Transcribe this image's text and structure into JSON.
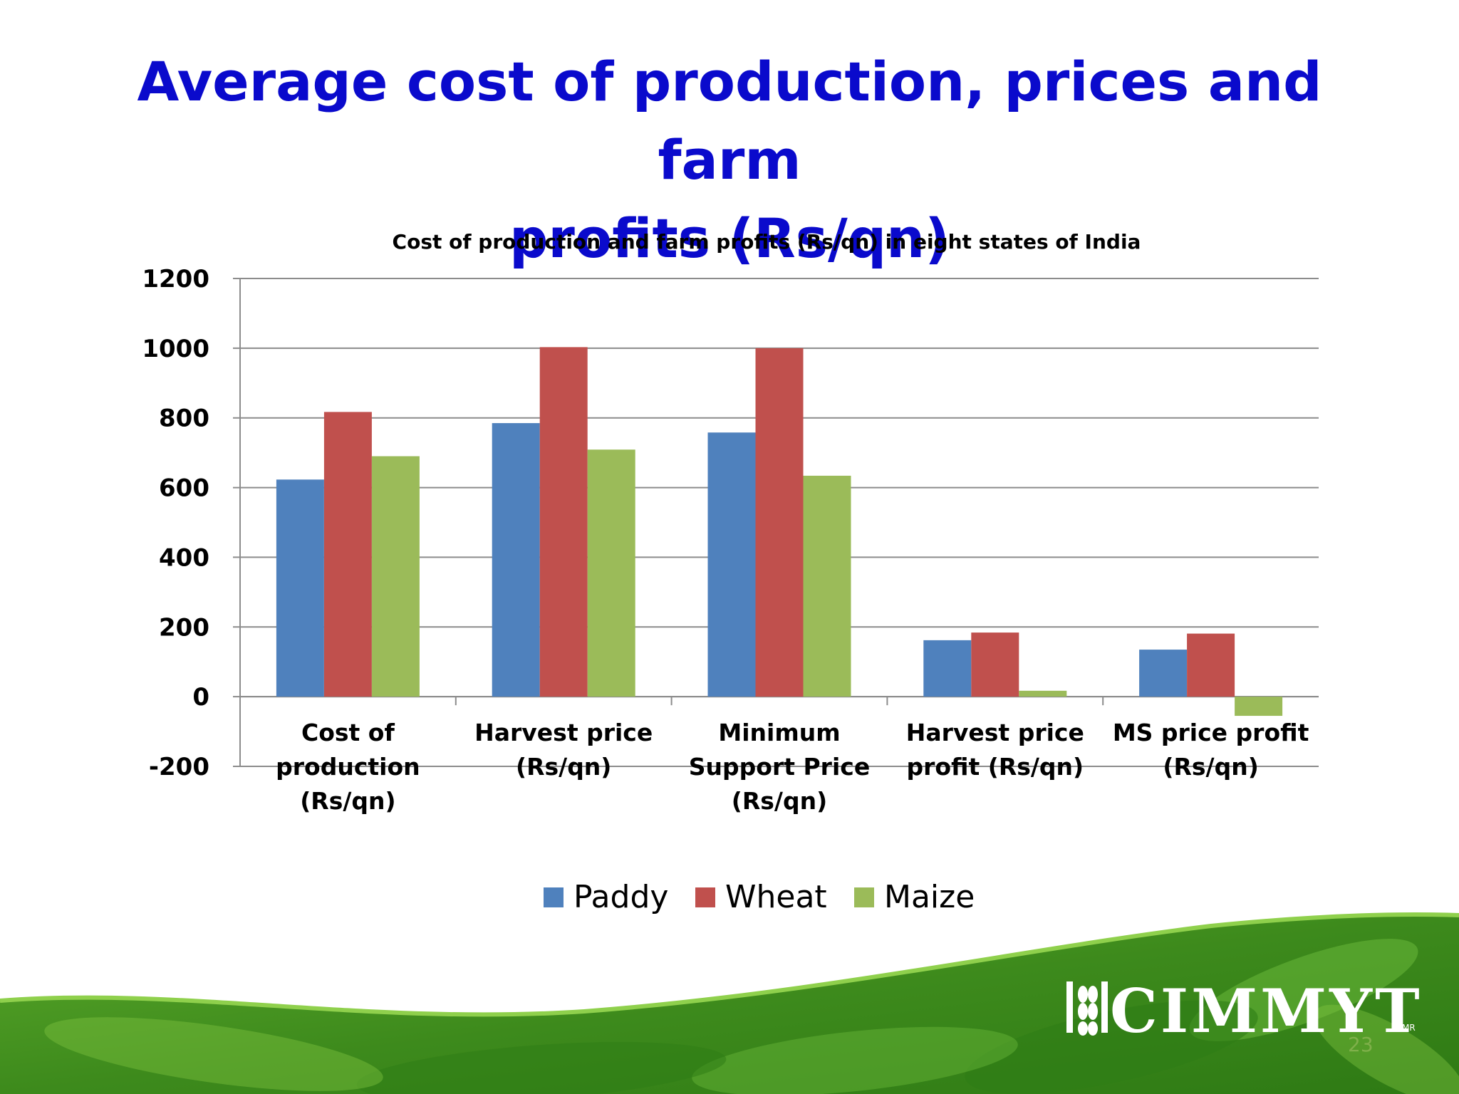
{
  "slide": {
    "title_line1": "Average cost of production, prices and farm",
    "title_line2": "profits (Rs/qn)",
    "logo": "CIMMYT",
    "logo_mark": "MR",
    "page_number": "23"
  },
  "colors": {
    "title": "#0a0acc",
    "paddy": "#4f81bd",
    "wheat": "#c0504d",
    "maize": "#9bbb59",
    "gridline": "#8c8c8c",
    "leaf_dark": "#3d8a1c",
    "leaf_light": "#7cc13e"
  },
  "chart_data": {
    "type": "bar",
    "title": "Cost of production and farm profits (Rs/qn) in eight states of India",
    "categories": [
      [
        "Cost of",
        "production",
        "(Rs/qn)"
      ],
      [
        "Harvest price",
        "(Rs/qn)"
      ],
      [
        "Minimum",
        "Support Price",
        "(Rs/qn)"
      ],
      [
        "Harvest price",
        "profit (Rs/qn)"
      ],
      [
        "MS price profit",
        "(Rs/qn)"
      ]
    ],
    "series": [
      {
        "name": "Paddy",
        "values": [
          623,
          785,
          758,
          162,
          135
        ]
      },
      {
        "name": "Wheat",
        "values": [
          817,
          1003,
          1000,
          184,
          181
        ]
      },
      {
        "name": "Maize",
        "values": [
          690,
          709,
          634,
          17,
          -55
        ]
      }
    ],
    "ylim": [
      -200,
      1200
    ],
    "yticks": [
      1200,
      1000,
      800,
      600,
      400,
      200,
      0,
      -200
    ],
    "grid": true,
    "legend_position": "bottom"
  }
}
